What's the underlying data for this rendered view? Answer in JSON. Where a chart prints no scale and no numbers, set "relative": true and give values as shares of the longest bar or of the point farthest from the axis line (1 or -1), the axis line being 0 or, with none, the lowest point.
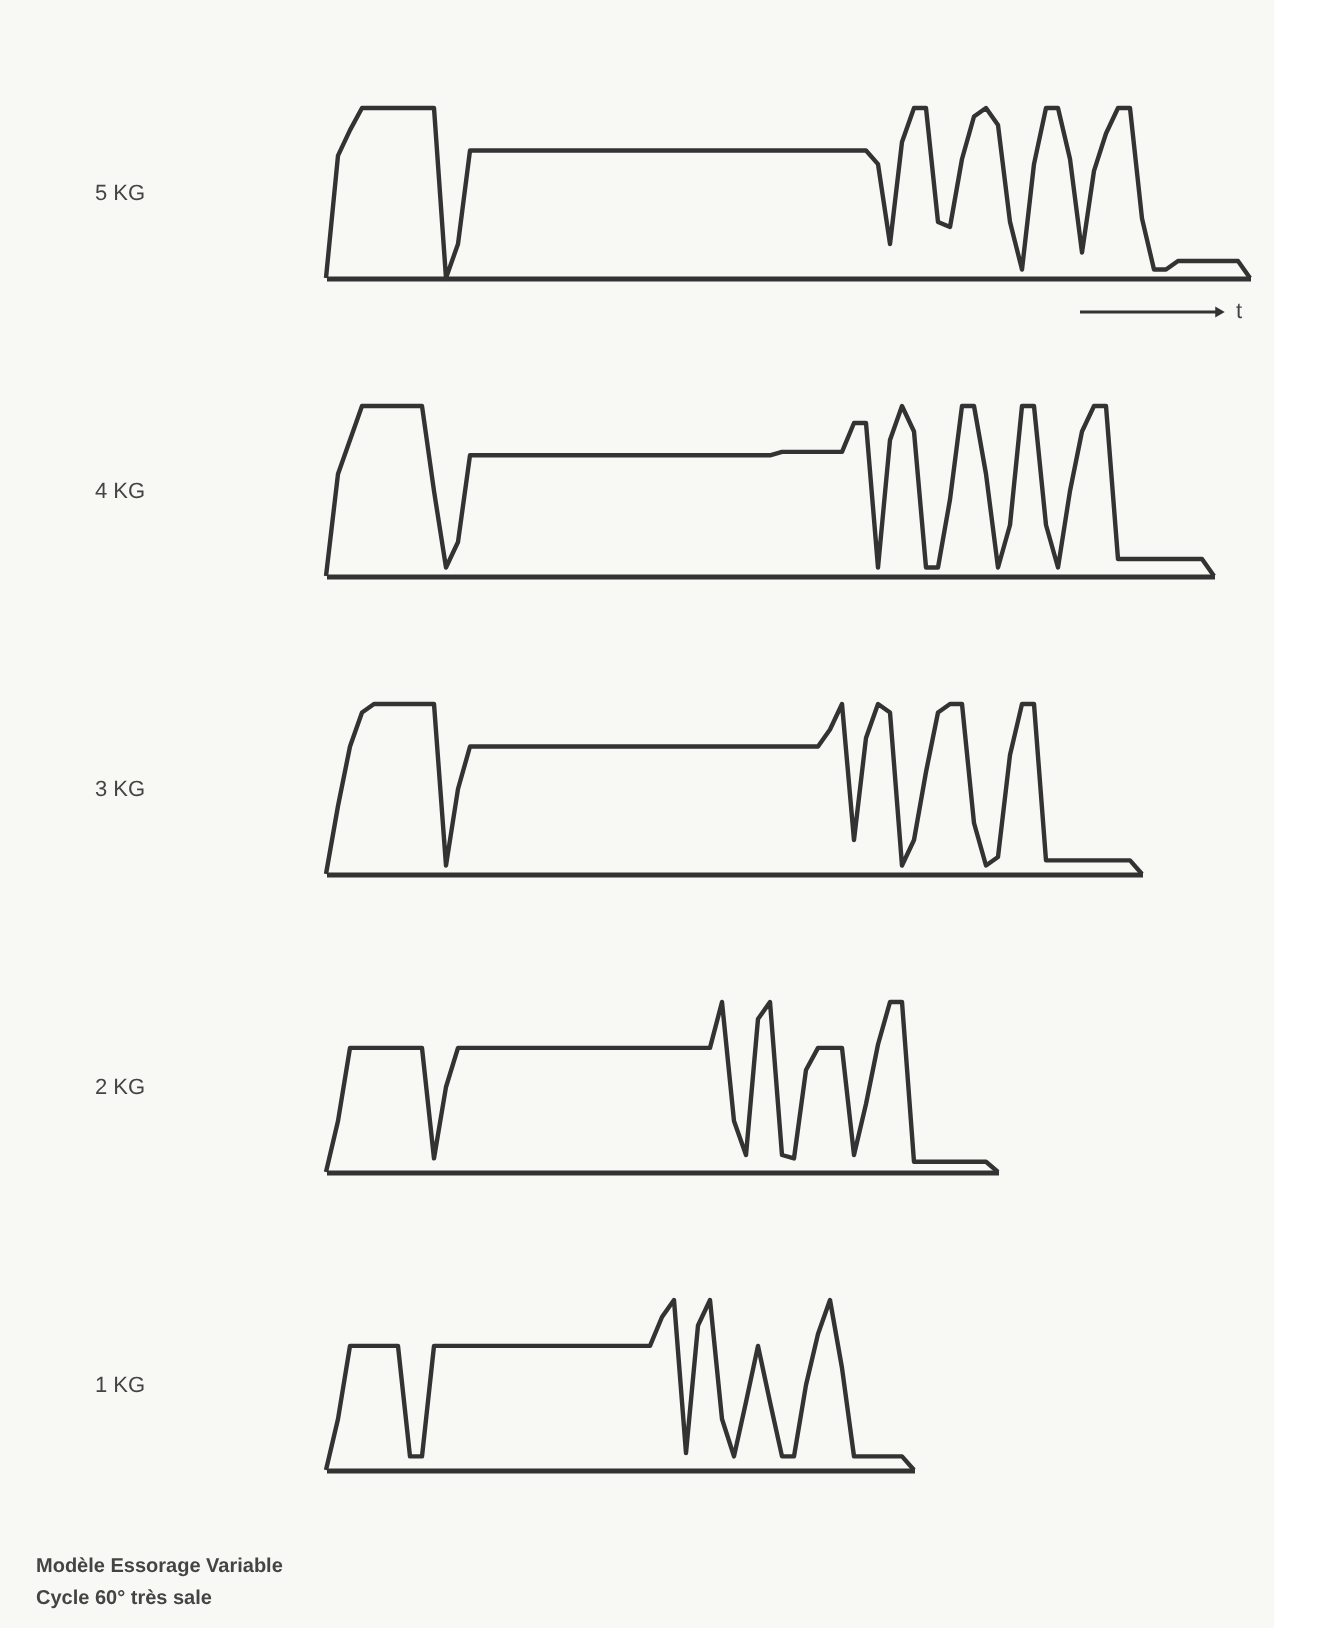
{
  "chart_data": [
    {
      "type": "line",
      "relative": true,
      "tick_labels": false,
      "ylabel": "5 KG",
      "xlabel": "t",
      "categories": [
        null,
        null,
        null,
        null,
        null,
        null,
        null,
        null,
        null,
        null,
        null,
        null,
        null,
        null,
        null,
        null,
        null,
        null,
        null,
        null,
        null,
        null,
        null,
        null,
        null,
        null,
        null,
        null,
        null,
        null,
        null,
        null,
        null,
        null,
        null,
        null,
        null,
        null,
        null,
        null,
        null,
        null,
        null,
        null,
        null,
        null,
        null,
        null,
        null,
        null,
        null,
        null,
        null,
        null,
        null,
        null,
        null,
        null,
        null,
        null,
        null,
        null,
        null,
        null,
        null,
        null,
        null,
        null,
        null,
        null,
        null,
        null,
        null,
        null,
        null,
        null,
        null,
        null
      ],
      "series": [
        {
          "color": "#333333",
          "values": [
            0,
            0.72,
            0.87,
            1,
            1,
            1,
            1,
            1,
            1,
            1,
            0,
            0.2,
            0.75,
            0.75,
            0.75,
            0.75,
            0.75,
            0.75,
            0.75,
            0.75,
            0.75,
            0.75,
            0.75,
            0.75,
            0.75,
            0.75,
            0.75,
            0.75,
            0.75,
            0.75,
            0.75,
            0.75,
            0.75,
            0.75,
            0.75,
            0.75,
            0.75,
            0.75,
            0.75,
            0.75,
            0.75,
            0.75,
            0.75,
            0.75,
            0.75,
            0.75,
            0.67,
            0.2,
            0.8,
            1,
            1,
            0.33,
            0.3,
            0.7,
            0.95,
            1,
            0.9,
            0.33,
            0.05,
            0.67,
            1,
            1,
            0.7,
            0.15,
            0.63,
            0.85,
            1,
            1,
            0.35,
            0.05,
            0.05,
            0.1,
            0.1,
            0.1,
            0.1,
            0.1,
            0.1,
            0
          ]
        }
      ]
    },
    {
      "type": "line",
      "relative": true,
      "tick_labels": false,
      "ylabel": "4 KG",
      "categories": [
        null,
        null,
        null,
        null,
        null,
        null,
        null,
        null,
        null,
        null,
        null,
        null,
        null,
        null,
        null,
        null,
        null,
        null,
        null,
        null,
        null,
        null,
        null,
        null,
        null,
        null,
        null,
        null,
        null,
        null,
        null,
        null,
        null,
        null,
        null,
        null,
        null,
        null,
        null,
        null,
        null,
        null,
        null,
        null,
        null,
        null,
        null,
        null,
        null,
        null,
        null,
        null,
        null,
        null,
        null,
        null,
        null,
        null,
        null,
        null,
        null,
        null,
        null,
        null,
        null,
        null,
        null,
        null,
        null,
        null,
        null,
        null,
        null,
        null,
        null
      ],
      "series": [
        {
          "color": "#333333",
          "values": [
            0,
            0.6,
            0.8,
            1,
            1,
            1,
            1,
            1,
            1,
            0.5,
            0.05,
            0.2,
            0.71,
            0.71,
            0.71,
            0.71,
            0.71,
            0.71,
            0.71,
            0.71,
            0.71,
            0.71,
            0.71,
            0.71,
            0.71,
            0.71,
            0.71,
            0.71,
            0.71,
            0.71,
            0.71,
            0.71,
            0.71,
            0.71,
            0.71,
            0.71,
            0.71,
            0.71,
            0.73,
            0.73,
            0.73,
            0.73,
            0.73,
            0.73,
            0.9,
            0.9,
            0.05,
            0.8,
            1,
            0.85,
            0.05,
            0.05,
            0.45,
            1,
            1,
            0.6,
            0.05,
            0.3,
            1,
            1,
            0.3,
            0.05,
            0.5,
            0.85,
            1,
            1,
            0.1,
            0.1,
            0.1,
            0.1,
            0.1,
            0.1,
            0.1,
            0.1,
            0
          ]
        }
      ]
    },
    {
      "type": "line",
      "relative": true,
      "tick_labels": false,
      "ylabel": "3 KG",
      "categories": [
        null,
        null,
        null,
        null,
        null,
        null,
        null,
        null,
        null,
        null,
        null,
        null,
        null,
        null,
        null,
        null,
        null,
        null,
        null,
        null,
        null,
        null,
        null,
        null,
        null,
        null,
        null,
        null,
        null,
        null,
        null,
        null,
        null,
        null,
        null,
        null,
        null,
        null,
        null,
        null,
        null,
        null,
        null,
        null,
        null,
        null,
        null,
        null,
        null,
        null,
        null,
        null,
        null,
        null,
        null,
        null,
        null,
        null,
        null,
        null,
        null,
        null,
        null,
        null,
        null,
        null,
        null,
        null,
        null
      ],
      "series": [
        {
          "color": "#333333",
          "values": [
            0,
            0.4,
            0.75,
            0.95,
            1,
            1,
            1,
            1,
            1,
            1,
            0.05,
            0.5,
            0.75,
            0.75,
            0.75,
            0.75,
            0.75,
            0.75,
            0.75,
            0.75,
            0.75,
            0.75,
            0.75,
            0.75,
            0.75,
            0.75,
            0.75,
            0.75,
            0.75,
            0.75,
            0.75,
            0.75,
            0.75,
            0.75,
            0.75,
            0.75,
            0.75,
            0.75,
            0.75,
            0.75,
            0.75,
            0.75,
            0.85,
            1,
            0.2,
            0.8,
            1,
            0.95,
            0.05,
            0.2,
            0.6,
            0.95,
            1,
            1,
            0.3,
            0.05,
            0.1,
            0.7,
            1,
            1,
            0.08,
            0.08,
            0.08,
            0.08,
            0.08,
            0.08,
            0.08,
            0.08,
            0
          ]
        }
      ]
    },
    {
      "type": "line",
      "relative": true,
      "tick_labels": false,
      "ylabel": "2 KG",
      "categories": [
        null,
        null,
        null,
        null,
        null,
        null,
        null,
        null,
        null,
        null,
        null,
        null,
        null,
        null,
        null,
        null,
        null,
        null,
        null,
        null,
        null,
        null,
        null,
        null,
        null,
        null,
        null,
        null,
        null,
        null,
        null,
        null,
        null,
        null,
        null,
        null,
        null,
        null,
        null,
        null,
        null,
        null,
        null,
        null,
        null,
        null,
        null,
        null,
        null,
        null,
        null,
        null,
        null,
        null,
        null,
        null,
        null
      ],
      "series": [
        {
          "color": "#333333",
          "values": [
            0,
            0.3,
            0.73,
            0.73,
            0.73,
            0.73,
            0.73,
            0.73,
            0.73,
            0.08,
            0.5,
            0.73,
            0.73,
            0.73,
            0.73,
            0.73,
            0.73,
            0.73,
            0.73,
            0.73,
            0.73,
            0.73,
            0.73,
            0.73,
            0.73,
            0.73,
            0.73,
            0.73,
            0.73,
            0.73,
            0.73,
            0.73,
            0.73,
            1,
            0.3,
            0.1,
            0.9,
            1,
            0.1,
            0.08,
            0.6,
            0.73,
            0.73,
            0.73,
            0.1,
            0.4,
            0.75,
            1,
            1,
            0.06,
            0.06,
            0.06,
            0.06,
            0.06,
            0.06,
            0.06,
            0
          ]
        }
      ]
    },
    {
      "type": "line",
      "relative": true,
      "tick_labels": false,
      "ylabel": "1 KG",
      "annotations": [
        "Modèle Essorage Variable",
        "Cycle 60° très sale"
      ],
      "categories": [
        null,
        null,
        null,
        null,
        null,
        null,
        null,
        null,
        null,
        null,
        null,
        null,
        null,
        null,
        null,
        null,
        null,
        null,
        null,
        null,
        null,
        null,
        null,
        null,
        null,
        null,
        null,
        null,
        null,
        null,
        null,
        null,
        null,
        null,
        null,
        null,
        null,
        null,
        null,
        null,
        null,
        null,
        null,
        null,
        null,
        null,
        null,
        null,
        null,
        null
      ],
      "series": [
        {
          "color": "#333333",
          "values": [
            0,
            0.3,
            0.73,
            0.73,
            0.73,
            0.73,
            0.73,
            0.08,
            0.08,
            0.73,
            0.73,
            0.73,
            0.73,
            0.73,
            0.73,
            0.73,
            0.73,
            0.73,
            0.73,
            0.73,
            0.73,
            0.73,
            0.73,
            0.73,
            0.73,
            0.73,
            0.73,
            0.73,
            0.9,
            1,
            0.1,
            0.85,
            1,
            0.3,
            0.08,
            0.4,
            0.73,
            0.4,
            0.08,
            0.08,
            0.5,
            0.8,
            1,
            0.6,
            0.08,
            0.08,
            0.08,
            0.08,
            0.08,
            0
          ]
        }
      ]
    }
  ]
}
